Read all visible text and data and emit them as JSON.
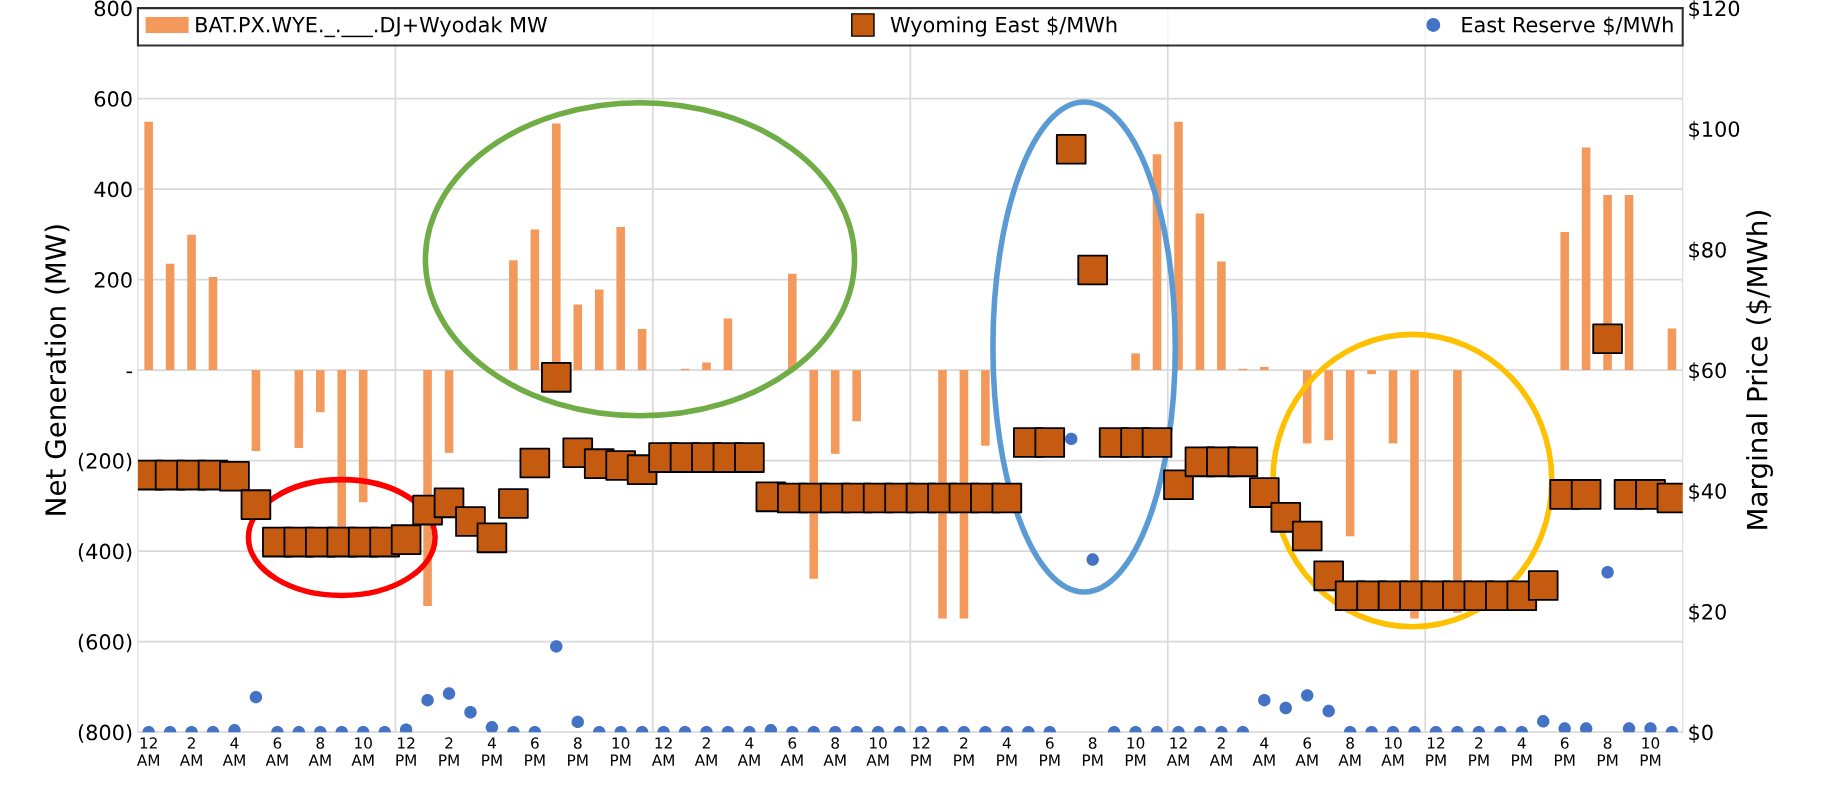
{
  "chart_data": {
    "type": "bar",
    "ylabel": "Net Generation (MW)",
    "y2label": "Marginal Price ($/MWh)",
    "categories": [
      "12\nAM",
      null,
      "2\nAM",
      null,
      "4\nAM",
      null,
      "6\nAM",
      null,
      "8\nAM",
      null,
      "10\nAM",
      null,
      "12\nPM",
      null,
      "2\nPM",
      null,
      "4\nPM",
      null,
      "6\nPM",
      null,
      "8\nPM",
      null,
      "10\nPM",
      null,
      "12\nAM",
      null,
      "2\nAM",
      null,
      "4\nAM",
      null,
      "6\nAM",
      null,
      "8\nAM",
      null,
      "10\nAM",
      null,
      "12\nPM",
      null,
      "2\nPM",
      null,
      "4\nPM",
      null,
      "6\nPM",
      null,
      "8\nPM",
      null,
      "10\nPM",
      null,
      "12\nAM",
      null,
      "2\nAM",
      null,
      "4\nAM",
      null,
      "6\nAM",
      null,
      "8\nAM",
      null,
      "10\nAM",
      null,
      "12\nPM",
      null,
      "2\nPM",
      null,
      "4\nPM",
      null,
      "6\nPM",
      null,
      "8\nPM",
      null,
      "10\nPM",
      null
    ],
    "series": [
      {
        "name": "BAT.PX.WYE._.___.DJ+Wyodak MW",
        "color": "#f4995c",
        "values": [
          549,
          235,
          299,
          206,
          0,
          -179,
          0,
          -172,
          -93,
          -347,
          -292,
          0,
          0,
          -521,
          -183,
          0,
          0,
          243,
          311,
          545,
          145,
          178,
          316,
          91,
          0,
          3,
          17,
          114,
          0,
          0,
          213,
          -461,
          -185,
          -113,
          0,
          0,
          null,
          -549,
          -549,
          -167,
          null,
          0,
          0,
          0,
          0,
          0,
          37,
          477,
          549,
          346,
          240,
          3,
          7,
          0,
          -162,
          -155,
          -367,
          -9,
          -162,
          -549,
          0,
          -536,
          0,
          0,
          0,
          0,
          305,
          492,
          387,
          387,
          0,
          92
        ]
      },
      {
        "name": "Wyoming East $/MWh",
        "type": "scatter",
        "axis": "y2",
        "marker": "square",
        "color": "#c55a11",
        "values": [
          42.6,
          42.6,
          42.6,
          42.6,
          42.4,
          37.7,
          31.5,
          31.5,
          31.5,
          31.5,
          31.5,
          31.5,
          31.9,
          36.8,
          38.0,
          34.9,
          32.2,
          37.9,
          44.6,
          58.8,
          46.3,
          44.5,
          44.2,
          43.5,
          45.5,
          45.5,
          45.5,
          45.5,
          45.5,
          39.0,
          38.8,
          38.8,
          38.8,
          38.8,
          38.8,
          38.8,
          38.8,
          38.8,
          38.8,
          38.8,
          38.8,
          48.0,
          48.0,
          96.6,
          76.6,
          48.0,
          48.0,
          48.0,
          41.0,
          44.8,
          44.8,
          44.8,
          39.7,
          35.6,
          32.5,
          25.9,
          22.6,
          22.6,
          22.6,
          22.6,
          22.6,
          22.6,
          22.6,
          22.6,
          22.6,
          24.3,
          39.4,
          39.4,
          65.2,
          39.4,
          39.4,
          38.8
        ]
      },
      {
        "name": "East Reserve $/MWh",
        "type": "scatter",
        "axis": "y2",
        "marker": "circle",
        "color": "#4472c4",
        "values": [
          0,
          0,
          0,
          0,
          0.3,
          5.8,
          0,
          0,
          0,
          0,
          0,
          0,
          0.4,
          5.3,
          6.4,
          3.3,
          0.8,
          0,
          0,
          14.2,
          1.7,
          0,
          0,
          0,
          0,
          0,
          0,
          0,
          0,
          0.3,
          0,
          0,
          0,
          0,
          0,
          0,
          0,
          0,
          0,
          0,
          0,
          0,
          0,
          48.6,
          28.6,
          0,
          0,
          0,
          0,
          0,
          0,
          0,
          5.3,
          4.0,
          6.1,
          3.5,
          0,
          0,
          0,
          0,
          0,
          0,
          0,
          0,
          0,
          1.8,
          0.6,
          0.6,
          26.5,
          0.6,
          0.6,
          0
        ]
      }
    ],
    "ylim": [
      -800,
      800
    ],
    "yticks": [
      {
        "value": -800,
        "label": "(800)"
      },
      {
        "value": -600,
        "label": "(600)"
      },
      {
        "value": -400,
        "label": "(400)"
      },
      {
        "value": -200,
        "label": "(200)"
      },
      {
        "value": 0,
        "label": "-"
      },
      200,
      400,
      600,
      800
    ],
    "y2lim": [
      0,
      120
    ],
    "y2ticks": [
      {
        "value": 0,
        "label": "$0"
      },
      {
        "value": 20,
        "label": "$20"
      },
      {
        "value": 40,
        "label": "$40"
      },
      {
        "value": 60,
        "label": "$60"
      },
      {
        "value": 80,
        "label": "$80"
      },
      {
        "value": 100,
        "label": "$100"
      },
      {
        "value": 120,
        "label": "$120"
      }
    ],
    "grid": true,
    "legend": "top"
  }
}
